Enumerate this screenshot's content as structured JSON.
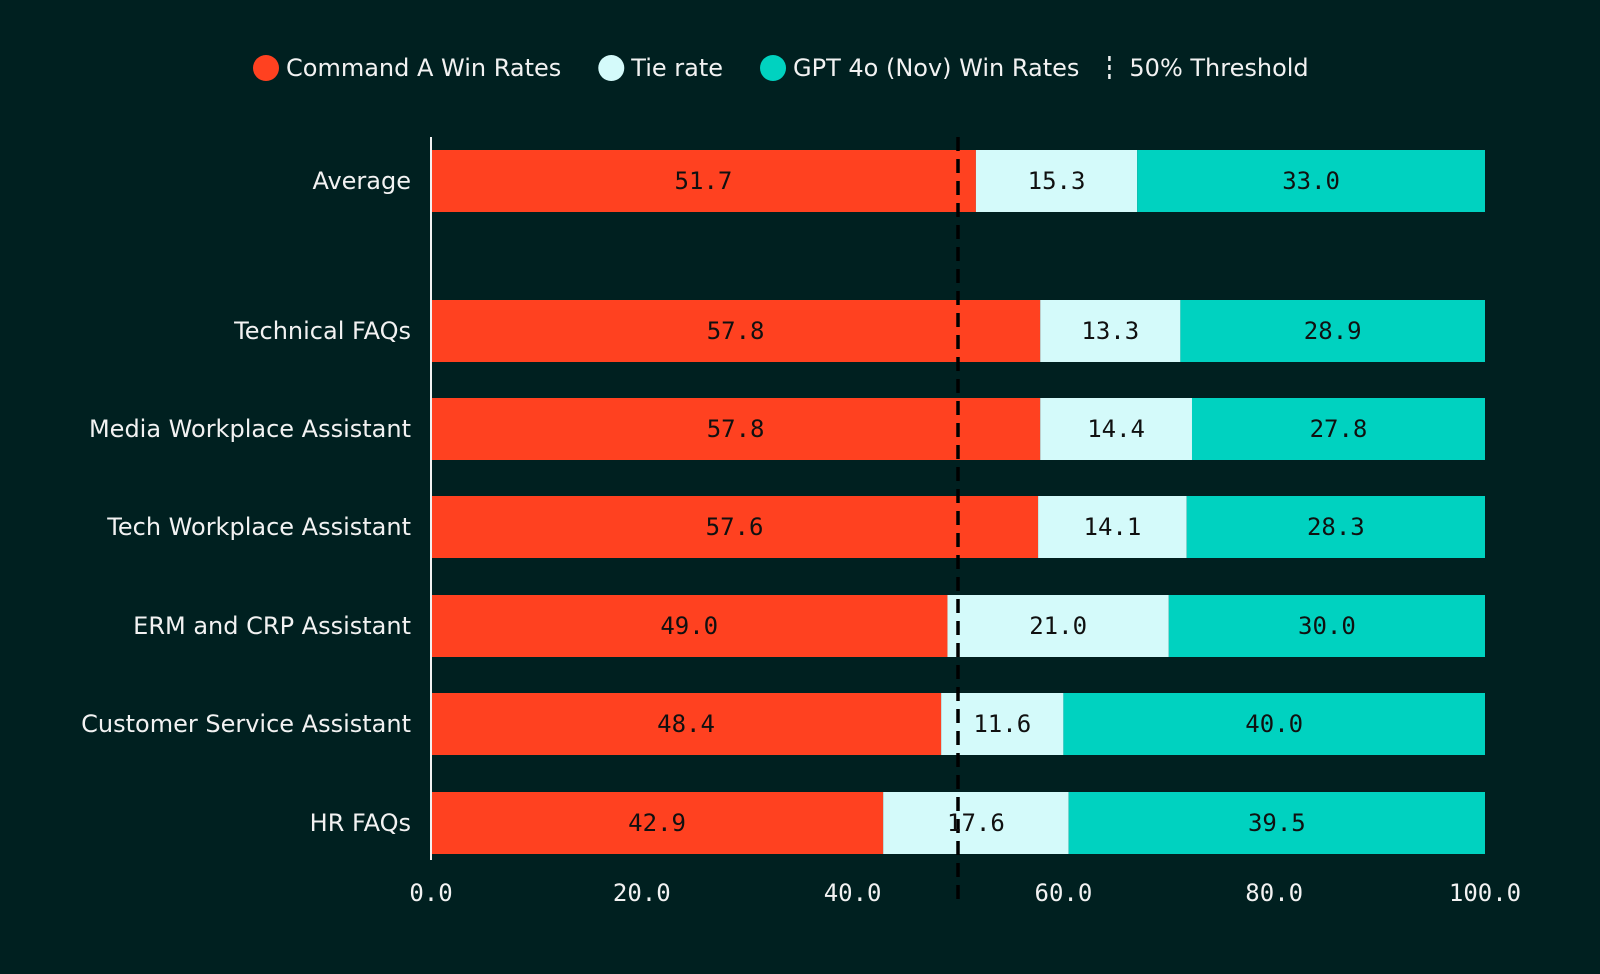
{
  "chart_data": {
    "type": "bar",
    "orientation": "horizontal",
    "stacked": true,
    "categories": [
      "Average",
      "Technical FAQs",
      "Media Workplace Assistant",
      "Tech Workplace Assistant",
      "ERM and CRP Assistant",
      "Customer Service Assistant",
      "HR FAQs"
    ],
    "series": [
      {
        "name": "Command A Win Rates",
        "color": "#ff4120",
        "values": [
          51.7,
          57.8,
          57.8,
          57.6,
          49.0,
          48.4,
          42.9
        ]
      },
      {
        "name": "Tie rate",
        "color": "#d4fafa",
        "values": [
          15.3,
          13.3,
          14.4,
          14.1,
          21.0,
          11.6,
          17.6
        ]
      },
      {
        "name": "GPT 4o (Nov) Win Rates",
        "color": "#00d2c0",
        "values": [
          33.0,
          28.9,
          27.8,
          28.3,
          30.0,
          40.0,
          39.5
        ]
      }
    ],
    "threshold": {
      "name": "50% Threshold",
      "value": 50
    },
    "xlim": [
      0,
      100
    ],
    "xticks": [
      "0.0",
      "20.0",
      "40.0",
      "60.0",
      "80.0",
      "100.0"
    ],
    "legend_position": "top",
    "grid": false
  }
}
